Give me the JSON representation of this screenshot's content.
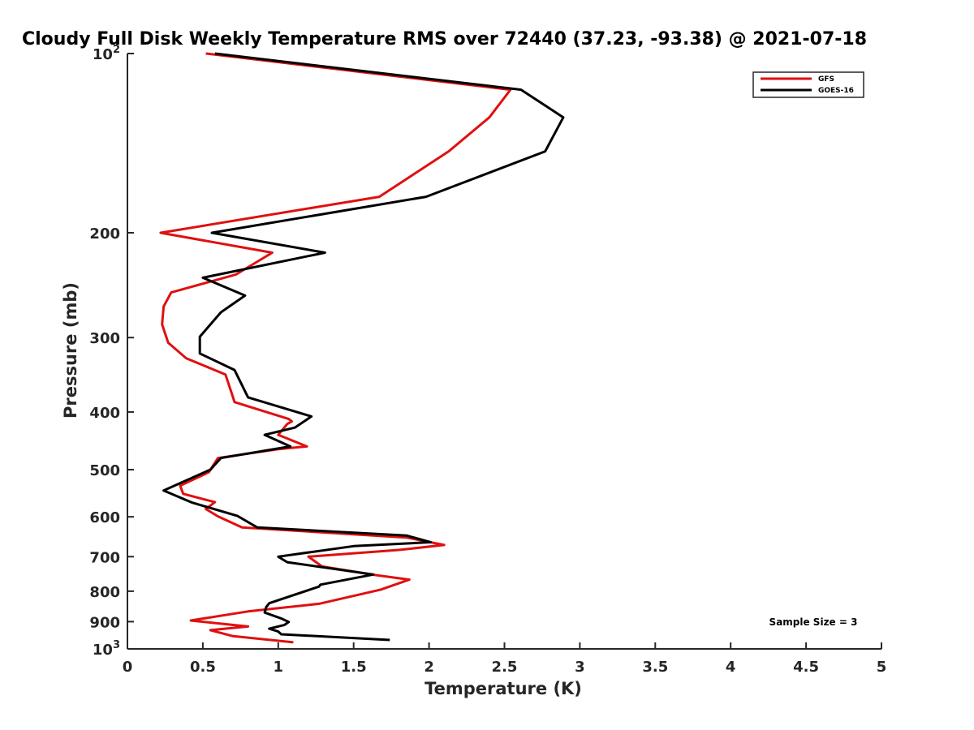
{
  "chart_data": {
    "type": "line",
    "title": "Cloudy Full Disk Weekly Temperature RMS over 72440 (37.23, -93.38) @ 2021-07-18",
    "xlabel": "Temperature (K)",
    "ylabel": "Pressure (mb)",
    "xlim": [
      0,
      5
    ],
    "ylim": [
      100,
      1000
    ],
    "y_scale": "log",
    "y_reversed": true,
    "grid": false,
    "legend_placement": "top-right",
    "x_ticks": [
      "0",
      "0.5",
      "1",
      "1.5",
      "2",
      "2.5",
      "3",
      "3.5",
      "4",
      "4.5",
      "5"
    ],
    "y_ticks": [
      {
        "value": 100,
        "base": "10",
        "exp": "2"
      },
      {
        "value": 200,
        "label": "200"
      },
      {
        "value": 300,
        "label": "300"
      },
      {
        "value": 400,
        "label": "400"
      },
      {
        "value": 500,
        "label": "500"
      },
      {
        "value": 600,
        "label": "600"
      },
      {
        "value": 700,
        "label": "700"
      },
      {
        "value": 800,
        "label": "800"
      },
      {
        "value": 900,
        "label": "900"
      },
      {
        "value": 1000,
        "base": "10",
        "exp": "3"
      }
    ],
    "annotation": "Sample Size = 3",
    "series": [
      {
        "name": "GFS",
        "color": "#e01010",
        "points": [
          [
            0.52,
            100
          ],
          [
            2.54,
            115
          ],
          [
            2.4,
            128
          ],
          [
            2.13,
            146
          ],
          [
            1.67,
            174
          ],
          [
            0.22,
            200
          ],
          [
            0.96,
            216
          ],
          [
            0.72,
            235
          ],
          [
            0.29,
            252
          ],
          [
            0.24,
            266
          ],
          [
            0.23,
            285
          ],
          [
            0.27,
            306
          ],
          [
            0.39,
            325
          ],
          [
            0.65,
            346
          ],
          [
            0.7,
            378
          ],
          [
            0.71,
            385
          ],
          [
            1.07,
            411
          ],
          [
            1.09,
            415
          ],
          [
            1.06,
            419
          ],
          [
            1.0,
            437
          ],
          [
            1.19,
            457
          ],
          [
            1.0,
            462
          ],
          [
            0.6,
            478
          ],
          [
            0.54,
            505
          ],
          [
            0.35,
            532
          ],
          [
            0.37,
            549
          ],
          [
            0.58,
            567
          ],
          [
            0.52,
            582
          ],
          [
            0.6,
            599
          ],
          [
            0.76,
            625
          ],
          [
            1.85,
            650
          ],
          [
            2.1,
            669
          ],
          [
            1.8,
            682
          ],
          [
            1.2,
            700
          ],
          [
            1.29,
            727
          ],
          [
            1.65,
            752
          ],
          [
            1.87,
            765
          ],
          [
            1.68,
            795
          ],
          [
            1.27,
            840
          ],
          [
            0.8,
            865
          ],
          [
            0.42,
            896
          ],
          [
            0.8,
            917
          ],
          [
            0.55,
            930
          ],
          [
            0.7,
            952
          ],
          [
            1.1,
            975
          ]
        ]
      },
      {
        "name": "GOES-16",
        "color": "#000000",
        "points": [
          [
            0.58,
            100
          ],
          [
            2.61,
            115
          ],
          [
            2.89,
            128
          ],
          [
            2.77,
            146
          ],
          [
            1.98,
            174
          ],
          [
            0.56,
            200
          ],
          [
            1.31,
            216
          ],
          [
            0.5,
            238
          ],
          [
            0.78,
            255
          ],
          [
            0.62,
            272
          ],
          [
            0.48,
            299
          ],
          [
            0.48,
            319
          ],
          [
            0.71,
            340
          ],
          [
            0.8,
            378
          ],
          [
            1.22,
            407
          ],
          [
            1.11,
            425
          ],
          [
            0.91,
            437
          ],
          [
            1.08,
            457
          ],
          [
            0.62,
            478
          ],
          [
            0.55,
            500
          ],
          [
            0.24,
            542
          ],
          [
            0.43,
            568
          ],
          [
            0.73,
            598
          ],
          [
            0.86,
            625
          ],
          [
            1.85,
            645
          ],
          [
            2.01,
            662
          ],
          [
            1.5,
            672
          ],
          [
            1.0,
            700
          ],
          [
            1.06,
            715
          ],
          [
            1.63,
            750
          ],
          [
            1.28,
            780
          ],
          [
            1.27,
            786
          ],
          [
            0.94,
            838
          ],
          [
            0.92,
            851
          ],
          [
            0.91,
            869
          ],
          [
            1.02,
            889
          ],
          [
            1.07,
            901
          ],
          [
            1.04,
            912
          ],
          [
            0.94,
            925
          ],
          [
            1.0,
            935
          ],
          [
            1.02,
            945
          ],
          [
            1.74,
            966
          ]
        ]
      }
    ]
  }
}
